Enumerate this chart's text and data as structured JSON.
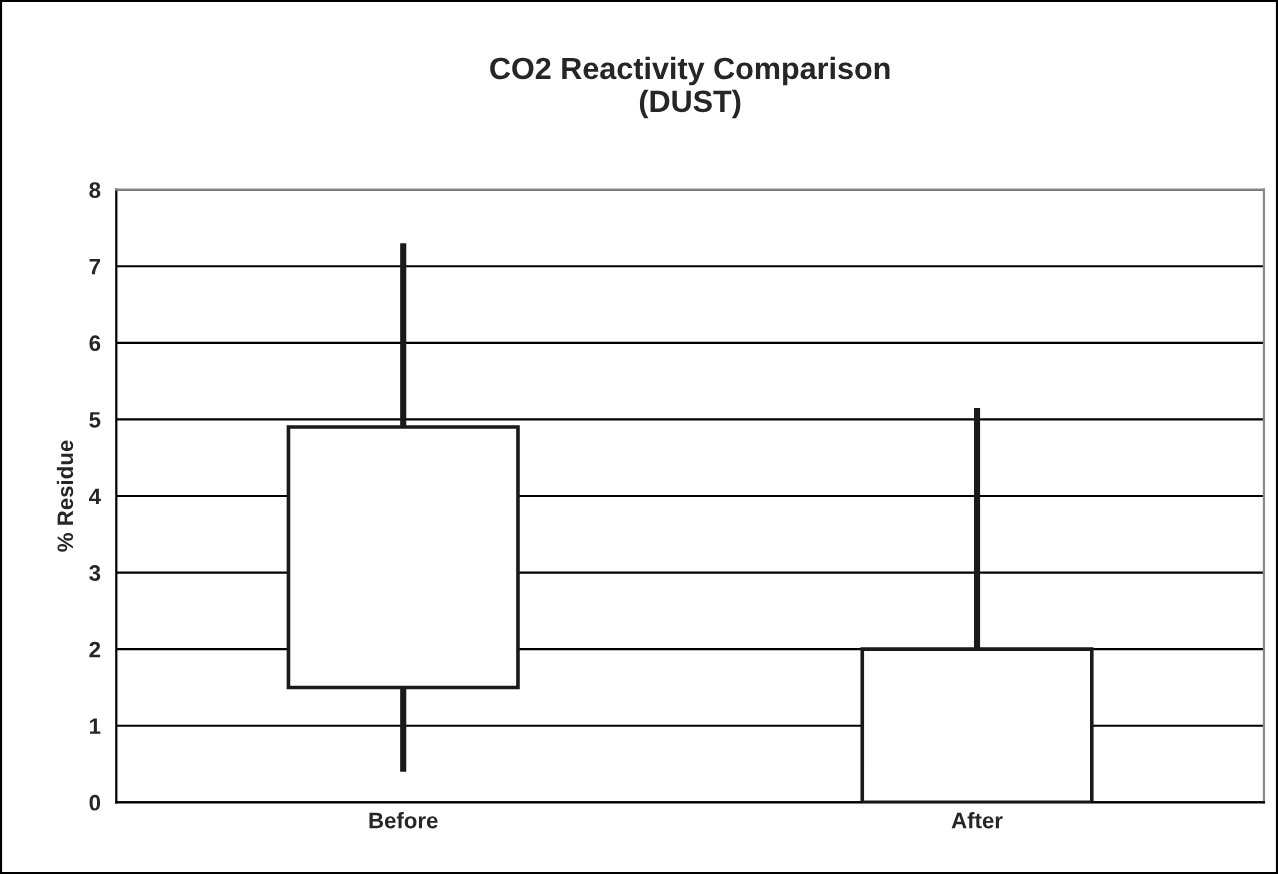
{
  "chart_data": {
    "type": "candlestick",
    "title": "CO2 Reactivity Comparison\n(DUST)",
    "ylabel": "% Residue",
    "categories": [
      "Before",
      "After"
    ],
    "ohlc": [
      [
        1.5,
        7.3,
        0.4,
        4.9
      ],
      [
        0,
        5.15,
        0,
        2
      ]
    ],
    "ylim": [
      0,
      8
    ],
    "yticks": [
      0,
      1,
      2,
      3,
      4,
      5,
      6,
      7,
      8
    ],
    "grid": "y"
  }
}
